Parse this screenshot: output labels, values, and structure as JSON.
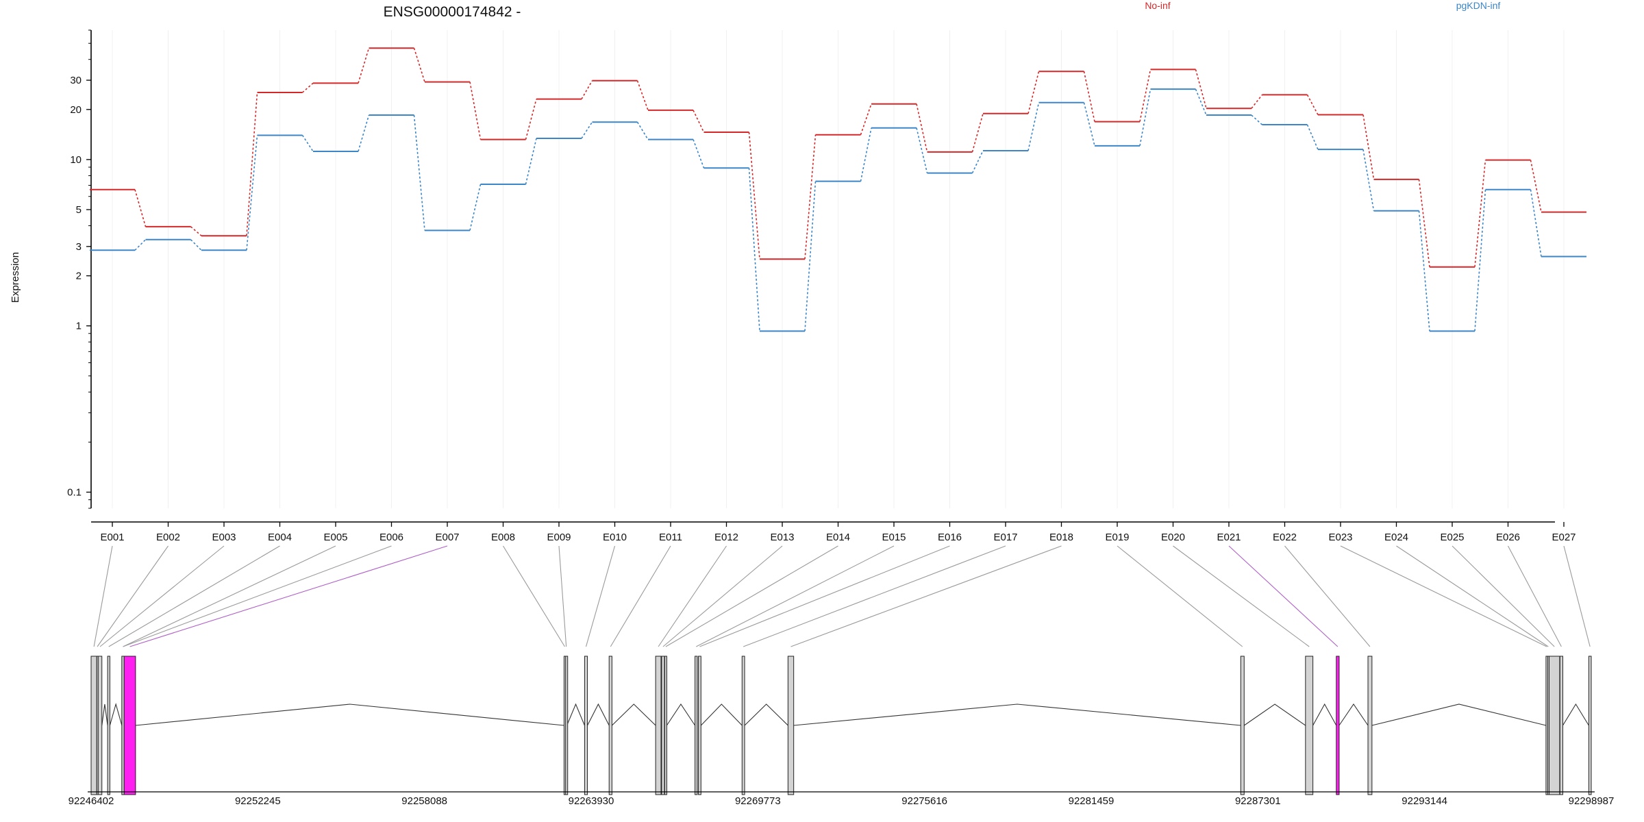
{
  "chart_data": {
    "type": "line",
    "title": "ENSG00000174842 -",
    "ylabel": "Expression",
    "xlabel": "",
    "y_scale": "log",
    "ylim": [
      0.08,
      60
    ],
    "y_ticks": [
      0.1,
      1,
      2,
      3,
      5,
      10,
      20,
      30
    ],
    "y_tick_labels": [
      "0.1",
      "1",
      "2",
      "3",
      "5",
      "10",
      "20",
      "30"
    ],
    "categories": [
      "E001",
      "E002",
      "E003",
      "E004",
      "E005",
      "E006",
      "E007",
      "E008",
      "E009",
      "E010",
      "E011",
      "E012",
      "E013",
      "E014",
      "E015",
      "E016",
      "E017",
      "E018",
      "E019",
      "E020",
      "E021",
      "E022",
      "E023",
      "E024",
      "E025",
      "E026",
      "E027"
    ],
    "series": [
      {
        "name": "No-inf",
        "color": "#d62728",
        "values": [
          6.6,
          3.95,
          3.48,
          25.3,
          28.8,
          46.8,
          29.3,
          13.2,
          23.1,
          29.8,
          19.8,
          14.6,
          2.52,
          14.1,
          21.6,
          11.1,
          18.9,
          33.9,
          16.9,
          34.8,
          20.3,
          24.5,
          18.6,
          7.6,
          2.26,
          9.93,
          4.83
        ]
      },
      {
        "name": "pgKDN-inf",
        "color": "#3a86c8",
        "values": [
          2.85,
          3.3,
          2.85,
          14.0,
          11.2,
          18.5,
          3.75,
          7.1,
          13.4,
          16.8,
          13.2,
          8.9,
          0.93,
          7.4,
          15.5,
          8.3,
          11.3,
          22.0,
          12.1,
          26.5,
          18.5,
          16.2,
          11.5,
          4.92,
          0.93,
          6.6,
          2.61
        ]
      }
    ],
    "legend": [
      "No-inf",
      "pgKDN-inf"
    ],
    "legend_position": "top-right",
    "grid": true
  },
  "gene_model": {
    "genomic_axis_labels": [
      "92246402",
      "92252245",
      "92258088",
      "92263930",
      "92269773",
      "92275616",
      "92281459",
      "92287301",
      "92293144",
      "92298987"
    ],
    "genomic_start": 92246402,
    "genomic_end": 92298987,
    "exon_fill": "#d3d3d3",
    "highlight_fill": "#ff1ff0",
    "highlight_line_color": "#b05fc8",
    "highlighted_exons": [
      "E007",
      "E021"
    ],
    "exons": [
      {
        "id": "E001",
        "start": 92246402,
        "end": 92246600
      },
      {
        "id": "E002",
        "start": 92246600,
        "end": 92246640
      },
      {
        "id": "E003",
        "start": 92246650,
        "end": 92246780
      },
      {
        "id": "E004",
        "start": 92246980,
        "end": 92247060
      },
      {
        "id": "E005",
        "start": 92247480,
        "end": 92247560
      },
      {
        "id": "E006",
        "start": 92247480,
        "end": 92247560
      },
      {
        "id": "E007",
        "start": 92247560,
        "end": 92247960
      },
      {
        "id": "E008",
        "start": 92262980,
        "end": 92263030
      },
      {
        "id": "E009",
        "start": 92263035,
        "end": 92263080
      },
      {
        "id": "E010",
        "start": 92263700,
        "end": 92263800
      },
      {
        "id": "E011",
        "start": 92264560,
        "end": 92264660
      },
      {
        "id": "E012",
        "start": 92266190,
        "end": 92266380
      },
      {
        "id": "E013",
        "start": 92266400,
        "end": 92266500
      },
      {
        "id": "E014",
        "start": 92266510,
        "end": 92266580
      },
      {
        "id": "E015",
        "start": 92267570,
        "end": 92267650
      },
      {
        "id": "E016",
        "start": 92267690,
        "end": 92267780
      },
      {
        "id": "E017",
        "start": 92269220,
        "end": 92269310
      },
      {
        "id": "E018",
        "start": 92270830,
        "end": 92271030
      },
      {
        "id": "E019",
        "start": 92286700,
        "end": 92286820
      },
      {
        "id": "E020",
        "start": 92288970,
        "end": 92289230
      },
      {
        "id": "E021",
        "start": 92290050,
        "end": 92290150
      },
      {
        "id": "E022",
        "start": 92291160,
        "end": 92291300
      },
      {
        "id": "E023",
        "start": 92297400,
        "end": 92297450
      },
      {
        "id": "E024",
        "start": 92297460,
        "end": 92297500
      },
      {
        "id": "E025",
        "start": 92297510,
        "end": 92297880
      },
      {
        "id": "E026",
        "start": 92297890,
        "end": 92297990
      },
      {
        "id": "E027",
        "start": 92298900,
        "end": 92298987
      }
    ]
  }
}
